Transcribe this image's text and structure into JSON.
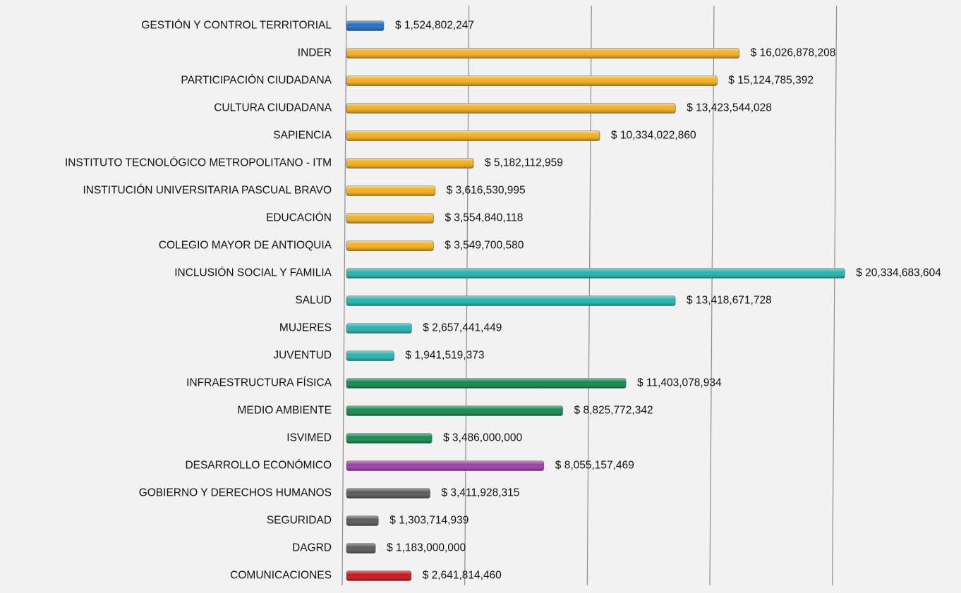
{
  "chart_data": {
    "type": "bar",
    "orientation": "horizontal",
    "categories": [
      "GESTIÓN Y CONTROL TERRITORIAL",
      "INDER",
      "PARTICIPACIÓN CIUDADANA",
      "CULTURA CIUDADANA",
      "SAPIENCIA",
      "INSTITUTO TECNOLÓGICO METROPOLITANO - ITM",
      "INSTITUCIÓN UNIVERSITARIA PASCUAL BRAVO",
      "EDUCACIÓN",
      "COLEGIO MAYOR DE ANTIOQUIA",
      "INCLUSIÓN SOCIAL Y FAMILIA",
      "SALUD",
      "MUJERES",
      "JUVENTUD",
      "INFRAESTRUCTURA FÍSICA",
      "MEDIO AMBIENTE",
      "ISVIMED",
      "DESARROLLO ECONÓMICO",
      "GOBIERNO Y DERECHOS HUMANOS",
      "SEGURIDAD",
      "DAGRD",
      "COMUNICACIONES"
    ],
    "values": [
      1524802247,
      16026878208,
      15124785392,
      13423544028,
      10334022860,
      5182112959,
      3616530995,
      3554840118,
      3549700580,
      20334683604,
      13418671728,
      2657441449,
      1941519373,
      11403078934,
      8825772342,
      3486000000,
      8055157469,
      3411928315,
      1303714939,
      1183000000,
      2641814460
    ],
    "value_labels": [
      "$ 1,524,802,247",
      "$ 16,026,878,208",
      "$ 15,124,785,392",
      "$ 13,423,544,028",
      "$ 10,334,022,860",
      "$ 5,182,112,959",
      "$ 3,616,530,995",
      "$ 3,554,840,118",
      "$ 3,549,700,580",
      "$ 20,334,683,604",
      "$ 13,418,671,728",
      "$ 2,657,441,449",
      "$ 1,941,519,373",
      "$ 11,403,078,934",
      "$ 8,825,772,342",
      "$ 3,486,000,000",
      "$ 8,055,157,469",
      "$ 3,411,928,315",
      "$ 1,303,714,939",
      "$ 1,183,000,000",
      "$ 2,641,814,460"
    ],
    "colors": [
      "#1f6fc4",
      "#f5b01c",
      "#f5b01c",
      "#f5b01c",
      "#f5b01c",
      "#f5b01c",
      "#f5b01c",
      "#f5b01c",
      "#f5b01c",
      "#23b5b0",
      "#23b5b0",
      "#23b5b0",
      "#23b5b0",
      "#138a4e",
      "#138a4e",
      "#138a4e",
      "#9b3ea8",
      "#595959",
      "#595959",
      "#595959",
      "#c8141b"
    ],
    "xlim": [
      0,
      20500000000
    ],
    "xticks": [
      0,
      5000000000,
      10000000000,
      15000000000,
      20000000000
    ],
    "grid": true
  }
}
